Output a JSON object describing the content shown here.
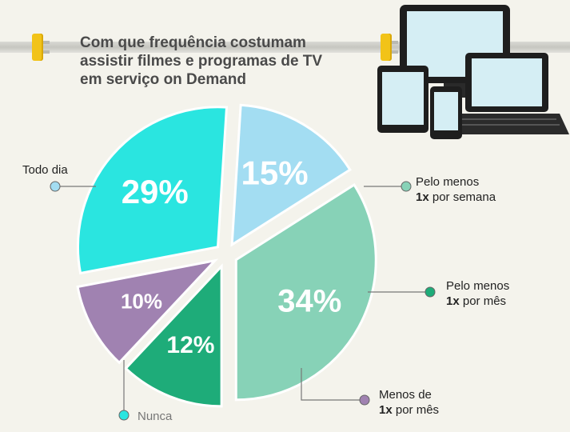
{
  "title_lines": [
    "Com que frequência costumam",
    "assistir filmes e programas de TV",
    "em serviço on Demand"
  ],
  "chart_data": {
    "type": "pie",
    "title": "Com que frequência costumam assistir filmes e programas de TV em serviço on Demand",
    "slices": [
      {
        "label": "Pelo menos 1x por semana",
        "value": 34,
        "display": "34%",
        "color": "#87d2b7"
      },
      {
        "label": "Pelo menos 1x por mês",
        "value": 12,
        "display": "12%",
        "color": "#1eac79"
      },
      {
        "label": "Menos de 1x por mês",
        "value": 10,
        "display": "10%",
        "color": "#a082b1"
      },
      {
        "label": "Nunca",
        "value": 29,
        "display": "29%",
        "color": "#2ae5e0"
      },
      {
        "label": "Todo dia",
        "value": 15,
        "display": "15%",
        "color": "#a3ddf2"
      }
    ]
  },
  "labels": {
    "semana": {
      "line1": "Pelo menos",
      "bold": "1x",
      "rest": " por semana"
    },
    "mes": {
      "line1": "Pelo menos",
      "bold": "1x",
      "rest": " por mês"
    },
    "menos": {
      "line1": "Menos de",
      "bold": "1x",
      "rest": " por mês"
    },
    "nunca": "Nunca",
    "todo_dia": "Todo dia"
  }
}
